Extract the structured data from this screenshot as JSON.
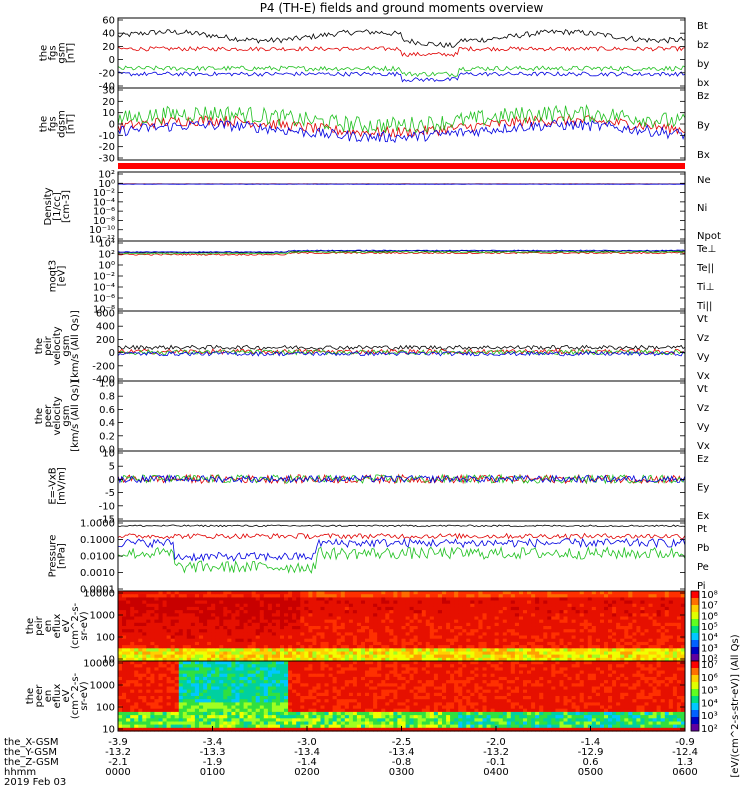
{
  "chart_data": [
    {
      "type": "line",
      "title": "P4 (TH-E) fields and ground moments overview",
      "ylabel": [
        "the",
        "fgs",
        "gsm",
        "[nT]"
      ],
      "ylim": [
        -40,
        60
      ],
      "yticks": [
        "60",
        "40",
        "20",
        "0",
        "-20",
        "-40"
      ],
      "series": [
        {
          "name": "Bt",
          "color": "#000000"
        },
        {
          "name": "bz",
          "color": "#e00000"
        },
        {
          "name": "by",
          "color": "#20c020"
        },
        {
          "name": "bx",
          "color": "#0000e0"
        }
      ]
    },
    {
      "type": "line",
      "ylabel": [
        "the",
        "fgs",
        "dgsm",
        "[nT]"
      ],
      "ylim": [
        -30,
        30
      ],
      "yticks": [
        "30",
        "20",
        "10",
        "0",
        "-10",
        "-20",
        "-30"
      ],
      "series": [
        {
          "name": "Bz",
          "color": "#e00000"
        },
        {
          "name": "By",
          "color": "#20c020"
        },
        {
          "name": "Bx",
          "color": "#0000e0"
        }
      ]
    },
    {
      "type": "line",
      "ylabel": [
        "Density",
        "[1/cc]",
        "[cm-3]"
      ],
      "scale": "log",
      "yticks": [
        "10²",
        "10⁰",
        "10⁻²",
        "10⁻⁴",
        "10⁻⁶",
        "10⁻⁸",
        "10⁻¹⁰",
        "10⁻¹²"
      ],
      "series": [
        {
          "name": "Ne",
          "color": "#e00000"
        },
        {
          "name": "Ni",
          "color": "#000000"
        },
        {
          "name": "Npot",
          "color": "#0000e0"
        }
      ]
    },
    {
      "type": "line",
      "ylabel": [
        "moqt3",
        "[eV]"
      ],
      "scale": "log",
      "yticks": [
        "10⁴",
        "10²",
        "10⁰",
        "10⁻²",
        "10⁻⁴",
        "10⁻⁶",
        "10⁻⁸"
      ],
      "series": [
        {
          "name": "Te⊥",
          "color": "#e00000"
        },
        {
          "name": "Te||",
          "color": "#000000"
        },
        {
          "name": "Ti⊥",
          "color": "#0000e0"
        },
        {
          "name": "Ti||",
          "color": "#20c020"
        }
      ]
    },
    {
      "type": "line",
      "ylabel": [
        "the",
        "peir",
        "velocity",
        "gsm",
        "[km/s (All Qs)]"
      ],
      "ylim": [
        -400,
        600
      ],
      "yticks": [
        "600",
        "400",
        "200",
        "0",
        "-200",
        "-400"
      ],
      "series": [
        {
          "name": "Vt",
          "color": "#000000"
        },
        {
          "name": "Vz",
          "color": "#e00000"
        },
        {
          "name": "Vy",
          "color": "#20c020"
        },
        {
          "name": "Vx",
          "color": "#0000e0"
        }
      ]
    },
    {
      "type": "line",
      "ylabel": [
        "the",
        "peer",
        "velocity",
        "gsm",
        "[km/s (All Qs)]"
      ],
      "ylim": [
        0,
        1
      ],
      "yticks": [
        "1.0",
        "0.8",
        "0.6",
        "0.4",
        "0.2",
        "0.0"
      ],
      "series": [
        {
          "name": "Vt",
          "color": "#000000"
        },
        {
          "name": "Vz",
          "color": "#e00000"
        },
        {
          "name": "Vy",
          "color": "#20c020"
        },
        {
          "name": "Vx",
          "color": "#0000e0"
        }
      ]
    },
    {
      "type": "line",
      "ylabel": [
        "E=-VxB",
        "[mV/m]"
      ],
      "ylim": [
        -15,
        10
      ],
      "yticks": [
        "10",
        "5",
        "0",
        "-5",
        "-10",
        "-15"
      ],
      "series": [
        {
          "name": "Ez",
          "color": "#e00000"
        },
        {
          "name": "Ey",
          "color": "#20c020"
        },
        {
          "name": "Ex",
          "color": "#0000e0"
        }
      ]
    },
    {
      "type": "line",
      "ylabel": [
        "Pressure",
        "[nPa]"
      ],
      "scale": "log",
      "ylim": [
        0.0001,
        1
      ],
      "yticks": [
        "1.0000",
        "0.1000",
        "0.0100",
        "0.0010",
        "0.0001"
      ],
      "series": [
        {
          "name": "Pt",
          "color": "#000000"
        },
        {
          "name": "Pb",
          "color": "#e00000"
        },
        {
          "name": "Pe",
          "color": "#20c020"
        },
        {
          "name": "Pi",
          "color": "#0000e0"
        }
      ]
    },
    {
      "type": "heatmap",
      "ylabel": [
        "the",
        "peir",
        "en",
        "eflux",
        "eV",
        "(cm^2-s-",
        "sr-eV)"
      ],
      "scale": "log",
      "yticks": [
        "10000",
        "1000",
        "100",
        "10"
      ],
      "colorbar": {
        "ticks": [
          "10⁸",
          "10⁷",
          "10⁶",
          "10⁵",
          "10⁴",
          "10³",
          "10²"
        ]
      }
    },
    {
      "type": "heatmap",
      "ylabel": [
        "the",
        "peer",
        "en",
        "eflux",
        "eV",
        "(cm^2-s-",
        "sr-eV)"
      ],
      "scale": "log",
      "yticks": [
        "10000",
        "1000",
        "100",
        "10"
      ],
      "colorbar": {
        "ticks": [
          "10⁷",
          "10⁶",
          "10⁵",
          "10⁴",
          "10³",
          "10²"
        ]
      }
    }
  ],
  "colorbar_label": "[eV/(cm^2-s-str-eV)] (All Qs)",
  "x_axis": {
    "rows": [
      {
        "label": "the_X-GSM",
        "values": [
          "-3.9",
          "-3.4",
          "-3.0",
          "-2.5",
          "-2.0",
          "-1.4",
          "-0.9"
        ]
      },
      {
        "label": "the_Y-GSM",
        "values": [
          "-13.2",
          "-13.3",
          "-13.4",
          "-13.4",
          "-13.2",
          "-12.9",
          "-12.4"
        ]
      },
      {
        "label": "the_Z-GSM",
        "values": [
          "-2.1",
          "-1.9",
          "-1.4",
          "-0.8",
          "-0.1",
          "0.6",
          "1.3"
        ]
      },
      {
        "label": "hhmm",
        "values": [
          "0000",
          "0100",
          "0200",
          "0300",
          "0400",
          "0500",
          "0600"
        ]
      }
    ],
    "date": "2019 Feb 03"
  }
}
